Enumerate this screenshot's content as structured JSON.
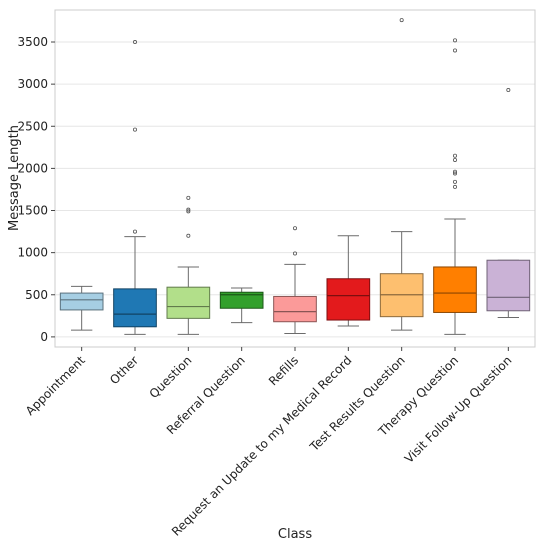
{
  "chart_data": {
    "type": "box",
    "title": "",
    "xlabel": "Class",
    "ylabel": "Message Length",
    "ylim": [
      -120,
      3880
    ],
    "yticks": [
      0,
      500,
      1000,
      1500,
      2000,
      2500,
      3000,
      3500
    ],
    "grid": "horizontal",
    "legend": "none",
    "categories": [
      "Appointment",
      "Other",
      "Question",
      "Referral Question",
      "Refills",
      "Request an Update to my Medical Record",
      "Test Results Question",
      "Therapy Question",
      "Visit Follow-Up Question"
    ],
    "boxes": [
      {
        "whislo": 80,
        "q1": 320,
        "med": 440,
        "q3": 520,
        "whishi": 600,
        "fliers": []
      },
      {
        "whislo": 30,
        "q1": 120,
        "med": 270,
        "q3": 570,
        "whishi": 1190,
        "fliers": [
          1250,
          2460,
          3500
        ]
      },
      {
        "whislo": 30,
        "q1": 220,
        "med": 360,
        "q3": 590,
        "whishi": 830,
        "fliers": [
          1200,
          1490,
          1510,
          1650
        ]
      },
      {
        "whislo": 170,
        "q1": 340,
        "med": 500,
        "q3": 530,
        "whishi": 580,
        "fliers": []
      },
      {
        "whislo": 40,
        "q1": 180,
        "med": 300,
        "q3": 480,
        "whishi": 860,
        "fliers": [
          990,
          1290
        ]
      },
      {
        "whislo": 130,
        "q1": 200,
        "med": 490,
        "q3": 690,
        "whishi": 1200,
        "fliers": []
      },
      {
        "whislo": 80,
        "q1": 240,
        "med": 500,
        "q3": 750,
        "whishi": 1250,
        "fliers": [
          3760
        ]
      },
      {
        "whislo": 30,
        "q1": 290,
        "med": 520,
        "q3": 830,
        "whishi": 1400,
        "fliers": [
          1780,
          1840,
          1940,
          1960,
          2100,
          2150,
          3400,
          3520
        ]
      },
      {
        "whislo": 230,
        "q1": 310,
        "med": 470,
        "q3": 910,
        "whishi": 910,
        "fliers": [
          2930
        ]
      }
    ],
    "colors": [
      "#a6cee3",
      "#1f78b4",
      "#b2df8a",
      "#33a02c",
      "#fb9a99",
      "#e31a1c",
      "#fdbf6f",
      "#ff7f00",
      "#cab2d6"
    ]
  }
}
